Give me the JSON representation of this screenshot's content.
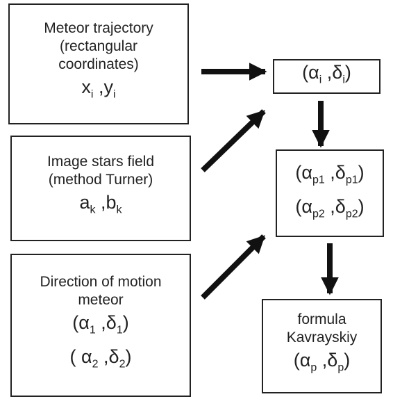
{
  "boxes": [
    {
      "lines": [
        "Meteor trajectory",
        "(rectangular",
        "coordinates)"
      ],
      "formulas": [
        [
          {
            "text": "x",
            "sub": "i"
          },
          {
            "text": " ,y",
            "sub": "i"
          }
        ]
      ]
    },
    {
      "lines": [
        "Image stars field",
        "(method Turner)"
      ],
      "formulas": [
        [
          {
            "text": "a",
            "sub": "k"
          },
          {
            "text": " ,b",
            "sub": "k"
          }
        ]
      ]
    },
    {
      "lines": [
        "Direction of motion",
        "meteor"
      ],
      "formulas": [
        [
          {
            "text": "(α",
            "sub": "1"
          },
          {
            "text": " ,δ",
            "sub": "1"
          },
          {
            "text": ")"
          }
        ],
        [
          {
            "text": "( α",
            "sub": "2"
          },
          {
            "text": " ,δ",
            "sub": "2"
          },
          {
            "text": ")"
          }
        ]
      ]
    },
    {
      "lines": [],
      "formulas": [
        [
          {
            "text": "(α",
            "sub": "i"
          },
          {
            "text": " ,δ",
            "sub": "i"
          },
          {
            "text": ")"
          }
        ]
      ]
    },
    {
      "lines": [],
      "formulas": [
        [
          {
            "text": "(α",
            "sub": "p1"
          },
          {
            "text": " ,δ",
            "sub": "p1"
          },
          {
            "text": ")"
          }
        ],
        [
          {
            "text": "(α",
            "sub": "p2"
          },
          {
            "text": " ,δ",
            "sub": "p2"
          },
          {
            "text": ")"
          }
        ]
      ]
    },
    {
      "lines": [
        "formula",
        "Kavrayskiy"
      ],
      "formulas": [
        [
          {
            "text": "(α",
            "sub": "p"
          },
          {
            "text": " ,δ",
            "sub": "p"
          },
          {
            "text": ")"
          }
        ]
      ]
    }
  ]
}
